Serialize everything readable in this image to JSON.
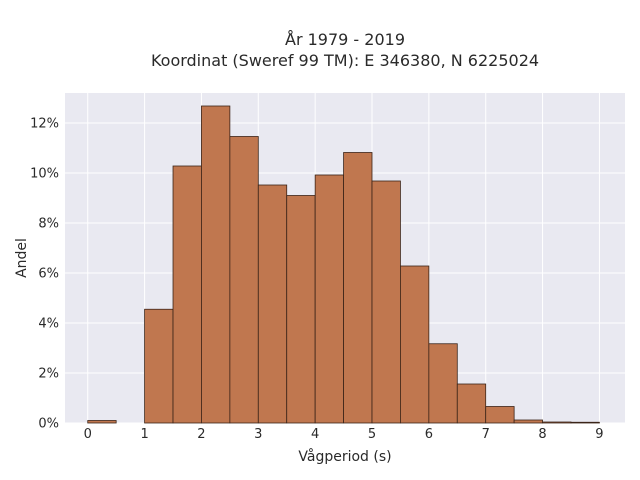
{
  "chart_data": {
    "type": "bar",
    "title": "År 1979 - 2019",
    "subtitle": "Koordinat (Sweref 99 TM): E 346380, N 6225024",
    "xlabel": "Vågperiod (s)",
    "ylabel": "Andel",
    "bin_edges": [
      0,
      0.5,
      1,
      1.5,
      2,
      2.5,
      3,
      3.5,
      4,
      4.5,
      5,
      5.5,
      6,
      6.5,
      7,
      7.5,
      8,
      8.5,
      9
    ],
    "values": [
      0.1,
      0.0,
      4.55,
      10.28,
      12.68,
      11.46,
      9.52,
      9.1,
      9.92,
      10.82,
      9.68,
      6.28,
      3.17,
      1.56,
      0.66,
      0.12,
      0.04,
      0.03
    ],
    "xlim": [
      -0.4,
      9.45
    ],
    "ylim": [
      0,
      13.2
    ],
    "xticks": [
      0,
      1,
      2,
      3,
      4,
      5,
      6,
      7,
      8,
      9
    ],
    "xtick_labels": [
      "0",
      "1",
      "2",
      "3",
      "4",
      "5",
      "6",
      "7",
      "8",
      "9"
    ],
    "yticks": [
      0,
      2,
      4,
      6,
      8,
      10,
      12
    ],
    "ytick_labels": [
      "0%",
      "2%",
      "4%",
      "6%",
      "8%",
      "10%",
      "12%"
    ],
    "grid": true,
    "colors": {
      "plot_background": "#e9e9f1",
      "grid": "#ffffff",
      "bar_fill": "#c0774f",
      "bar_edge": "#3b2418"
    }
  }
}
